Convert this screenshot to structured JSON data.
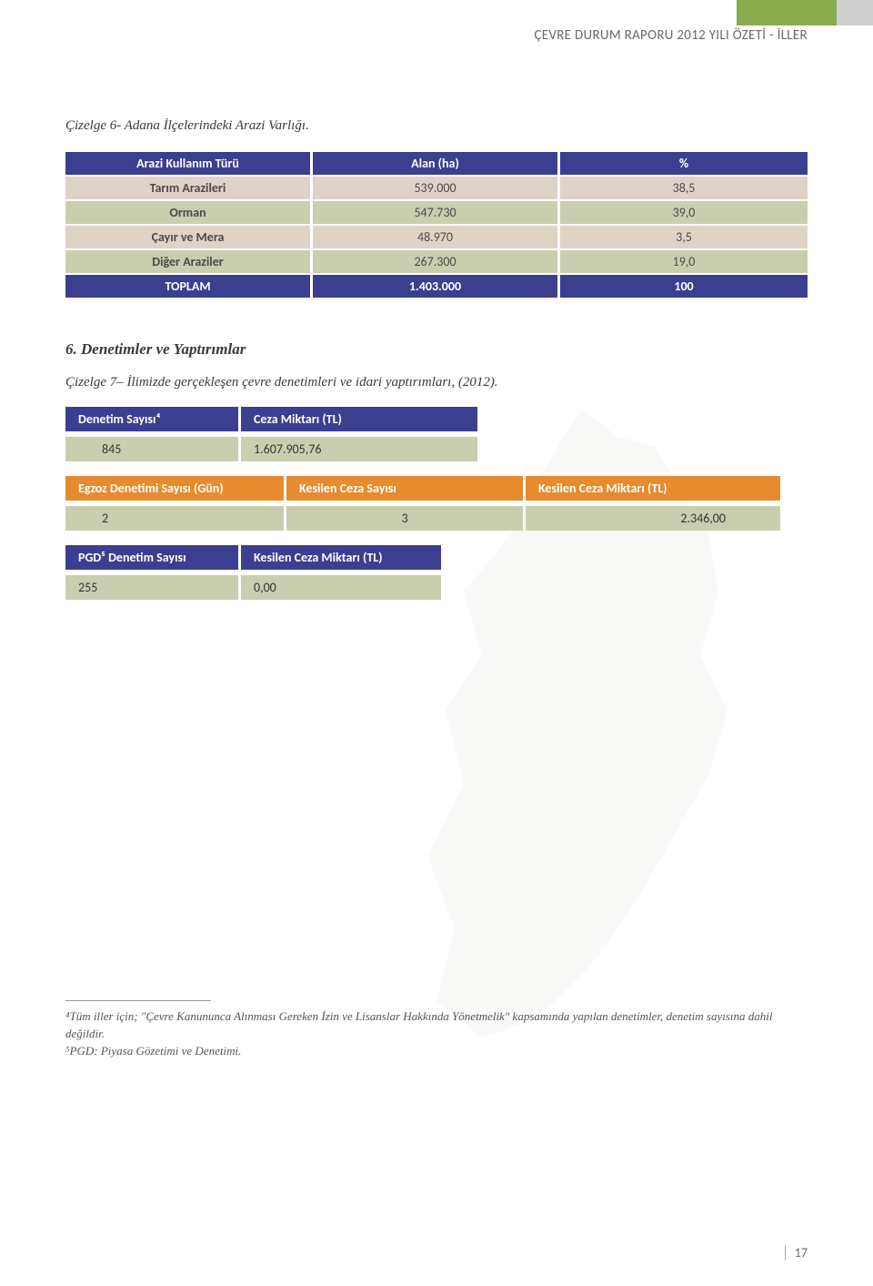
{
  "colors": {
    "navy": "#3b3f8f",
    "orange": "#e78b2f",
    "tan": "#dfd3c5",
    "sage": "#c9cfae",
    "green_bar": "#8aab4d",
    "grey_bar": "#cfcfcf",
    "map_fill": "#f4f4f2"
  },
  "header": {
    "title": "ÇEVRE DURUM RAPORU 2012 YILI ÖZETİ - İLLER"
  },
  "table6": {
    "caption": "Çizelge 6- Adana İlçelerindeki Arazi Varlığı.",
    "headers": [
      "Arazi Kullanım Türü",
      "Alan (ha)",
      "%"
    ],
    "rows": [
      {
        "label": "Tarım Arazileri",
        "area": "539.000",
        "pct": "38,5",
        "cls": "alt1"
      },
      {
        "label": "Orman",
        "area": "547.730",
        "pct": "39,0",
        "cls": "alt2"
      },
      {
        "label": "Çayır ve Mera",
        "area": "48.970",
        "pct": "3,5",
        "cls": "alt1"
      },
      {
        "label": "Diğer Araziler",
        "area": "267.300",
        "pct": "19,0",
        "cls": "alt2"
      }
    ],
    "total": {
      "label": "TOPLAM",
      "area": "1.403.000",
      "pct": "100"
    }
  },
  "section6": {
    "title": "6. Denetimler ve Yaptırımlar",
    "caption": "Çizelge 7– İlimizde gerçekleşen çevre denetimleri ve idari yaptırımları, (2012)."
  },
  "t7a": {
    "headers": [
      "Denetim Sayısı⁴",
      "Ceza Miktarı (TL)"
    ],
    "values": [
      "845",
      "1.607.905,76"
    ],
    "col_widths": [
      "190px",
      "260px"
    ]
  },
  "t7b": {
    "headers": [
      "Egzoz Denetimi Sayısı (Gün)",
      "Kesilen Ceza Sayısı",
      "Kesilen Ceza Miktarı (TL)"
    ],
    "values": [
      "2",
      "3",
      "2.346,00"
    ],
    "col_widths": [
      "240px",
      "260px",
      "280px"
    ]
  },
  "t7c": {
    "headers": [
      "PGD⁵ Denetim Sayısı",
      "Kesilen Ceza Miktarı (TL)"
    ],
    "values": [
      "255",
      "0,00"
    ],
    "col_widths": [
      "190px",
      "220px"
    ]
  },
  "footnotes": {
    "f4": "⁴Tüm iller için; \"Çevre Kanununca Alınması Gereken İzin ve Lisanslar Hakkında Yönetmelik\" kapsamında yapılan denetimler, denetim sayısına dahil değildir.",
    "f5": "⁵PGD: Piyasa Gözetimi ve Denetimi."
  },
  "page_number": "17"
}
